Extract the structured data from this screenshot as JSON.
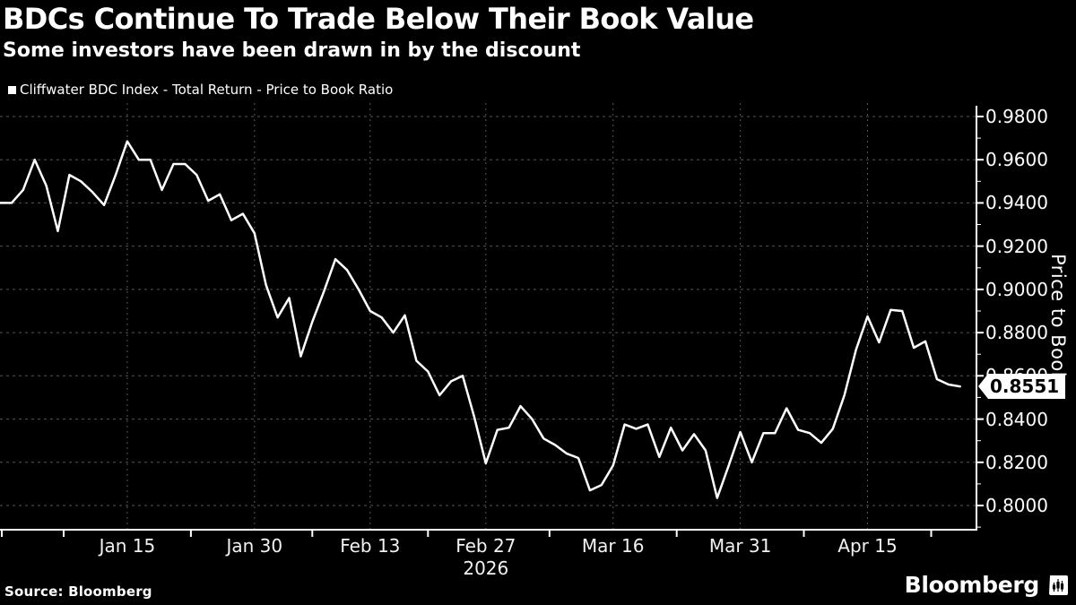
{
  "footer": {
    "source": "Source: Bloomberg",
    "brand": "Bloomberg"
  },
  "chart_data": {
    "type": "line",
    "title": "BDCs Continue To Trade Below Their Book Value",
    "subtitle": "Some investors have been drawn in by the discount",
    "legend": {
      "label": "Cliffwater BDC Index - Total Return - Price to Book Ratio",
      "marker_color": "#ffffff",
      "position": "top-left"
    },
    "background_color": "#000000",
    "line_color": "#ffffff",
    "grid_color": "#565656",
    "grid": "dashed horizontal and vertical",
    "series": [
      {
        "name": "Cliffwater BDC Index - Total Return - Price to Book Ratio",
        "color": "#ffffff",
        "values": [
          0.94,
          0.94,
          0.946,
          0.96,
          0.948,
          0.927,
          0.953,
          0.95,
          0.945,
          0.939,
          0.953,
          0.9685,
          0.96,
          0.96,
          0.946,
          0.958,
          0.958,
          0.953,
          0.941,
          0.944,
          0.932,
          0.935,
          0.926,
          0.902,
          0.887,
          0.896,
          0.869,
          0.885,
          0.899,
          0.914,
          0.909,
          0.9,
          0.89,
          0.887,
          0.88,
          0.888,
          0.867,
          0.862,
          0.851,
          0.8575,
          0.86,
          0.841,
          0.8195,
          0.835,
          0.836,
          0.846,
          0.84,
          0.831,
          0.828,
          0.824,
          0.822,
          0.807,
          0.8095,
          0.8185,
          0.8375,
          0.8355,
          0.8375,
          0.8225,
          0.836,
          0.8255,
          0.833,
          0.8255,
          0.8035,
          0.8185,
          0.834,
          0.82,
          0.8335,
          0.8335,
          0.845,
          0.835,
          0.8335,
          0.829,
          0.8355,
          0.851,
          0.872,
          0.8875,
          0.8755,
          0.8905,
          0.89,
          0.873,
          0.876,
          0.8585,
          0.856,
          0.8551
        ]
      }
    ],
    "x_ticks": [
      {
        "label": "Jan 15",
        "index": 11
      },
      {
        "label": "Jan 30",
        "index": 22
      },
      {
        "label": "Feb 13",
        "index": 32
      },
      {
        "label": "Feb 27",
        "index": 42,
        "sublabel": "2026"
      },
      {
        "label": "Mar 16",
        "index": 53
      },
      {
        "label": "Mar 31",
        "index": 64
      },
      {
        "label": "Apr 15",
        "index": 75
      }
    ],
    "x_year_label": "2026",
    "y_axis": {
      "label": "Price to Book",
      "side": "right",
      "min": 0.7884,
      "max": 0.9862,
      "major_ticks": [
        0.98,
        0.96,
        0.94,
        0.92,
        0.9,
        0.88,
        0.86,
        0.84,
        0.82,
        0.8
      ],
      "minor_ticks": [
        0.97,
        0.95,
        0.93,
        0.91,
        0.89,
        0.87,
        0.85,
        0.83,
        0.81,
        0.79
      ],
      "tick_decimals": 4
    },
    "last_value_label": "0.8551",
    "last_value": 0.8551
  }
}
